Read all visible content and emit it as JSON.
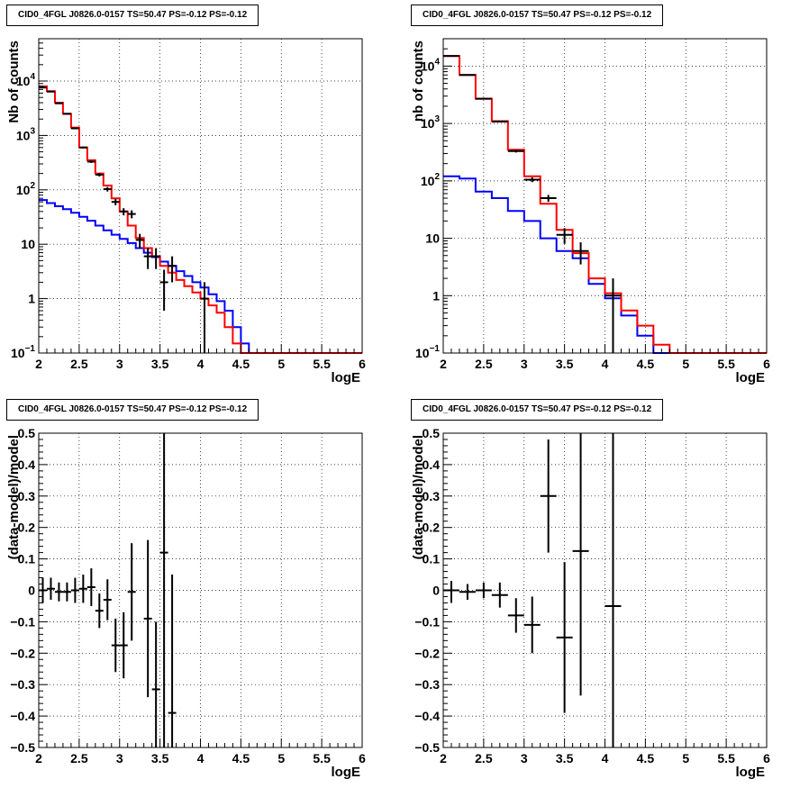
{
  "chart_data": [
    {
      "type": "line",
      "title": "CID0_4FGL J0826.0-0157 TS=50.47 PS=-0.12 PS=-0.12",
      "xlabel": "logE",
      "ylabel": "Nb of counts",
      "xlim": [
        2,
        6
      ],
      "ylim": [
        0.1,
        60000
      ],
      "yscale": "log",
      "xticks": [
        "2",
        "2.5",
        "3",
        "3.5",
        "4",
        "4.5",
        "5",
        "5.5",
        "6"
      ],
      "yticks": [
        {
          "v": 0.1,
          "label": "10",
          "sup": "−1"
        },
        {
          "v": 1,
          "label": "1",
          "sup": ""
        },
        {
          "v": 10,
          "label": "10",
          "sup": ""
        },
        {
          "v": 100,
          "label": "10",
          "sup": "2"
        },
        {
          "v": 1000,
          "label": "10",
          "sup": "3"
        },
        {
          "v": 10000,
          "label": "10",
          "sup": "4"
        }
      ],
      "grid": true,
      "series": [
        {
          "color": "#0000ff",
          "bin_width": 0.1,
          "values": [
            65,
            57,
            50,
            44,
            38,
            32,
            27,
            22,
            18,
            15,
            12.5,
            10.5,
            8.5,
            7,
            5.8,
            4.8,
            4,
            3.2,
            2.6,
            2,
            1.6,
            1.2,
            0.9,
            0.6,
            0.3,
            0.15,
            0.1,
            0.1,
            0.1,
            0.1,
            0.1,
            0.1,
            0.1,
            0.1,
            0.1,
            0.1,
            0.1,
            0.1,
            0.1,
            0.1
          ]
        },
        {
          "color": "#ff0000",
          "bin_width": 0.1,
          "values": [
            8000,
            6500,
            4000,
            2500,
            1400,
            600,
            350,
            200,
            120,
            70,
            40,
            22,
            13,
            8.5,
            6,
            4,
            3,
            2.2,
            1.7,
            1.3,
            1,
            0.75,
            0.55,
            0.3,
            0.15,
            0.1,
            0.1,
            0.1,
            0.1,
            0.1,
            0.1,
            0.1,
            0.1,
            0.1,
            0.1,
            0.1,
            0.1,
            0.1,
            0.1,
            0.1
          ]
        },
        {
          "color": "#000000",
          "type": "errorbar",
          "xerr": 0.05,
          "points": [
            {
              "x": 2.05,
              "y": 7600,
              "lo": 7400,
              "hi": 7800
            },
            {
              "x": 2.15,
              "y": 6400,
              "lo": 6250,
              "hi": 6550
            },
            {
              "x": 2.25,
              "y": 3900,
              "lo": 3800,
              "hi": 4000
            },
            {
              "x": 2.35,
              "y": 2500,
              "lo": 2420,
              "hi": 2580
            },
            {
              "x": 2.45,
              "y": 1350,
              "lo": 1300,
              "hi": 1400
            },
            {
              "x": 2.55,
              "y": 600,
              "lo": 575,
              "hi": 625
            },
            {
              "x": 2.65,
              "y": 330,
              "lo": 312,
              "hi": 348
            },
            {
              "x": 2.75,
              "y": 190,
              "lo": 176,
              "hi": 204
            },
            {
              "x": 2.85,
              "y": 103,
              "lo": 93,
              "hi": 113
            },
            {
              "x": 2.95,
              "y": 60,
              "lo": 52,
              "hi": 68
            },
            {
              "x": 3.05,
              "y": 40,
              "lo": 34,
              "hi": 46
            },
            {
              "x": 3.15,
              "y": 36,
              "lo": 30,
              "hi": 42
            },
            {
              "x": 3.25,
              "y": 12,
              "lo": 8.5,
              "hi": 15.5
            },
            {
              "x": 3.35,
              "y": 6,
              "lo": 3.5,
              "hi": 8.5
            },
            {
              "x": 3.45,
              "y": 6,
              "lo": 3.5,
              "hi": 8.5
            },
            {
              "x": 3.55,
              "y": 2,
              "lo": 0.6,
              "hi": 3.4
            },
            {
              "x": 3.65,
              "y": 4,
              "lo": 2,
              "hi": 6
            },
            {
              "x": 4.05,
              "y": 1,
              "lo": 0.1,
              "hi": 2
            }
          ]
        }
      ]
    },
    {
      "type": "line",
      "title": "CID0_4FGL J0826.0-0157 TS=50.47 PS=-0.12 PS=-0.12",
      "xlabel": "logE",
      "ylabel": "nb of counts",
      "xlim": [
        2,
        6
      ],
      "ylim": [
        0.1,
        30000
      ],
      "yscale": "log",
      "xticks": [
        "2",
        "2.5",
        "3",
        "3.5",
        "4",
        "4.5",
        "5",
        "5.5",
        "6"
      ],
      "yticks": [
        {
          "v": 0.1,
          "label": "10",
          "sup": "−1"
        },
        {
          "v": 1,
          "label": "1",
          "sup": ""
        },
        {
          "v": 10,
          "label": "10",
          "sup": ""
        },
        {
          "v": 100,
          "label": "10",
          "sup": "2"
        },
        {
          "v": 1000,
          "label": "10",
          "sup": "3"
        },
        {
          "v": 10000,
          "label": "10",
          "sup": "4"
        }
      ],
      "grid": true,
      "series": [
        {
          "color": "#0000ff",
          "bin_width": 0.2,
          "values": [
            120,
            110,
            65,
            50,
            30,
            20,
            10,
            6,
            4.5,
            1.6,
            0.9,
            0.45,
            0.2,
            0.1,
            0.1,
            0.1,
            0.1,
            0.1,
            0.1,
            0.1
          ]
        },
        {
          "color": "#ff0000",
          "bin_width": 0.2,
          "values": [
            15000,
            7000,
            2700,
            1100,
            350,
            120,
            40,
            14,
            5.5,
            2,
            1.1,
            0.55,
            0.3,
            0.14,
            0.1,
            0.1,
            0.1,
            0.1,
            0.1,
            0.1
          ]
        },
        {
          "color": "#000000",
          "type": "errorbar",
          "xerr": 0.1,
          "points": [
            {
              "x": 2.1,
              "y": 15000,
              "lo": 14800,
              "hi": 15200
            },
            {
              "x": 2.3,
              "y": 7000,
              "lo": 6900,
              "hi": 7100
            },
            {
              "x": 2.5,
              "y": 2700,
              "lo": 2640,
              "hi": 2760
            },
            {
              "x": 2.7,
              "y": 1080,
              "lo": 1045,
              "hi": 1115
            },
            {
              "x": 2.9,
              "y": 330,
              "lo": 312,
              "hi": 348
            },
            {
              "x": 3.1,
              "y": 105,
              "lo": 95,
              "hi": 115
            },
            {
              "x": 3.3,
              "y": 50,
              "lo": 43,
              "hi": 57
            },
            {
              "x": 3.5,
              "y": 11.5,
              "lo": 8,
              "hi": 15
            },
            {
              "x": 3.7,
              "y": 6,
              "lo": 3.5,
              "hi": 8.5
            },
            {
              "x": 4.1,
              "y": 1,
              "lo": 0.1,
              "hi": 2
            }
          ]
        }
      ]
    },
    {
      "type": "scatter",
      "title": "CID0_4FGL J0826.0-0157 TS=50.47 PS=-0.12 PS=-0.12",
      "xlabel": "logE",
      "ylabel": "(data-model)/model",
      "xlim": [
        2,
        6
      ],
      "ylim": [
        -0.5,
        0.5
      ],
      "yscale": "linear",
      "xticks": [
        "2",
        "2.5",
        "3",
        "3.5",
        "4",
        "4.5",
        "5",
        "5.5",
        "6"
      ],
      "yticks": [
        {
          "v": -0.5,
          "label": "−0.5",
          "sup": ""
        },
        {
          "v": -0.4,
          "label": "−0.4",
          "sup": ""
        },
        {
          "v": -0.3,
          "label": "−0.3",
          "sup": ""
        },
        {
          "v": -0.2,
          "label": "−0.2",
          "sup": ""
        },
        {
          "v": -0.1,
          "label": "−0.1",
          "sup": ""
        },
        {
          "v": 0,
          "label": "0",
          "sup": ""
        },
        {
          "v": 0.1,
          "label": "0.1",
          "sup": ""
        },
        {
          "v": 0.2,
          "label": "0.2",
          "sup": ""
        },
        {
          "v": 0.3,
          "label": "0.3",
          "sup": ""
        },
        {
          "v": 0.4,
          "label": "0.4",
          "sup": ""
        },
        {
          "v": 0.5,
          "label": "0.5",
          "sup": ""
        }
      ],
      "grid": true,
      "series": [
        {
          "color": "#000000",
          "type": "errorbar",
          "xerr": 0.05,
          "points": [
            {
              "x": 2.05,
              "y": 0.0,
              "lo": -0.04,
              "hi": 0.04
            },
            {
              "x": 2.15,
              "y": 0.005,
              "lo": -0.03,
              "hi": 0.04
            },
            {
              "x": 2.25,
              "y": -0.005,
              "lo": -0.035,
              "hi": 0.025
            },
            {
              "x": 2.35,
              "y": -0.005,
              "lo": -0.035,
              "hi": 0.025
            },
            {
              "x": 2.45,
              "y": 0.0,
              "lo": -0.04,
              "hi": 0.04
            },
            {
              "x": 2.55,
              "y": 0.005,
              "lo": -0.04,
              "hi": 0.05
            },
            {
              "x": 2.65,
              "y": 0.01,
              "lo": -0.05,
              "hi": 0.07
            },
            {
              "x": 2.75,
              "y": -0.065,
              "lo": -0.12,
              "hi": -0.01
            },
            {
              "x": 2.85,
              "y": -0.03,
              "lo": -0.095,
              "hi": 0.035
            },
            {
              "x": 2.95,
              "y": -0.175,
              "lo": -0.26,
              "hi": -0.09
            },
            {
              "x": 3.05,
              "y": -0.175,
              "lo": -0.28,
              "hi": -0.07
            },
            {
              "x": 3.15,
              "y": -0.005,
              "lo": -0.16,
              "hi": 0.15
            },
            {
              "x": 3.35,
              "y": -0.09,
              "lo": -0.34,
              "hi": 0.16
            },
            {
              "x": 3.45,
              "y": -0.315,
              "lo": -0.5,
              "hi": -0.1
            },
            {
              "x": 3.55,
              "y": 0.12,
              "lo": -0.5,
              "hi": 0.5
            },
            {
              "x": 3.65,
              "y": -0.39,
              "lo": -0.5,
              "hi": 0.05
            }
          ]
        }
      ]
    },
    {
      "type": "scatter",
      "title": "CID0_4FGL J0826.0-0157 TS=50.47 PS=-0.12 PS=-0.12",
      "xlabel": "logE",
      "ylabel": "(data-model)/model",
      "xlim": [
        2,
        6
      ],
      "ylim": [
        -0.5,
        0.5
      ],
      "yscale": "linear",
      "xticks": [
        "2",
        "2.5",
        "3",
        "3.5",
        "4",
        "4.5",
        "5",
        "5.5",
        "6"
      ],
      "yticks": [
        {
          "v": -0.5,
          "label": "−0.5",
          "sup": ""
        },
        {
          "v": -0.4,
          "label": "−0.4",
          "sup": ""
        },
        {
          "v": -0.3,
          "label": "−0.3",
          "sup": ""
        },
        {
          "v": -0.2,
          "label": "−0.2",
          "sup": ""
        },
        {
          "v": -0.1,
          "label": "−0.1",
          "sup": ""
        },
        {
          "v": 0,
          "label": "0",
          "sup": ""
        },
        {
          "v": 0.1,
          "label": "0.1",
          "sup": ""
        },
        {
          "v": 0.2,
          "label": "0.2",
          "sup": ""
        },
        {
          "v": 0.3,
          "label": "0.3",
          "sup": ""
        },
        {
          "v": 0.4,
          "label": "0.4",
          "sup": ""
        },
        {
          "v": 0.5,
          "label": "0.5",
          "sup": ""
        }
      ],
      "grid": true,
      "series": [
        {
          "color": "#000000",
          "type": "errorbar",
          "xerr": 0.1,
          "points": [
            {
              "x": 2.1,
              "y": 0.0,
              "lo": -0.04,
              "hi": 0.03
            },
            {
              "x": 2.3,
              "y": -0.005,
              "lo": -0.03,
              "hi": 0.02
            },
            {
              "x": 2.5,
              "y": 0.0,
              "lo": -0.025,
              "hi": 0.025
            },
            {
              "x": 2.7,
              "y": -0.015,
              "lo": -0.055,
              "hi": 0.025
            },
            {
              "x": 2.9,
              "y": -0.08,
              "lo": -0.135,
              "hi": -0.025
            },
            {
              "x": 3.1,
              "y": -0.11,
              "lo": -0.2,
              "hi": -0.02
            },
            {
              "x": 3.3,
              "y": 0.3,
              "lo": 0.12,
              "hi": 0.48
            },
            {
              "x": 3.5,
              "y": -0.15,
              "lo": -0.39,
              "hi": 0.09
            },
            {
              "x": 3.7,
              "y": 0.125,
              "lo": -0.335,
              "hi": 0.5
            },
            {
              "x": 4.1,
              "y": -0.05,
              "lo": -0.5,
              "hi": 0.5
            }
          ]
        }
      ]
    }
  ]
}
